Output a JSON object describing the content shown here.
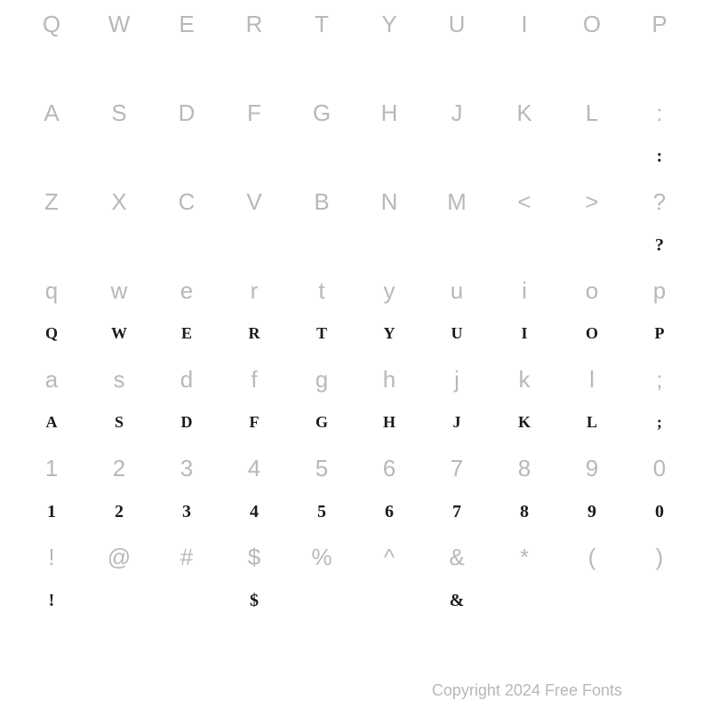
{
  "background_color": "#ffffff",
  "key_label_color": "#b8b8b8",
  "glyph_color": "#1a1a1a",
  "key_label_fontsize": 26,
  "glyph_fontsize": 20,
  "key_label_font": "sans-serif",
  "glyph_font": "serif",
  "copyright": "Copyright 2024 Free Fonts",
  "rows": [
    {
      "keys": [
        "Q",
        "W",
        "E",
        "R",
        "T",
        "Y",
        "U",
        "I",
        "O",
        "P"
      ],
      "glyphs": [
        "",
        "",
        "",
        "",
        "",
        "",
        "",
        "",
        "",
        ""
      ]
    },
    {
      "keys": [
        "A",
        "S",
        "D",
        "F",
        "G",
        "H",
        "J",
        "K",
        "L",
        ":"
      ],
      "glyphs": [
        "",
        "",
        "",
        "",
        "",
        "",
        "",
        "",
        "",
        ":"
      ]
    },
    {
      "keys": [
        "Z",
        "X",
        "C",
        "V",
        "B",
        "N",
        "M",
        "<",
        ">",
        "?"
      ],
      "glyphs": [
        "",
        "",
        "",
        "",
        "",
        "",
        "",
        "",
        "",
        "?"
      ]
    },
    {
      "keys": [
        "q",
        "w",
        "e",
        "r",
        "t",
        "y",
        "u",
        "i",
        "o",
        "p"
      ],
      "glyphs": [
        "Q",
        "W",
        "E",
        "R",
        "T",
        "Y",
        "U",
        "I",
        "O",
        "P"
      ]
    },
    {
      "keys": [
        "a",
        "s",
        "d",
        "f",
        "g",
        "h",
        "j",
        "k",
        "l",
        ";"
      ],
      "glyphs": [
        "A",
        "S",
        "D",
        "F",
        "G",
        "H",
        "J",
        "K",
        "L",
        ";"
      ]
    },
    {
      "keys": [
        "1",
        "2",
        "3",
        "4",
        "5",
        "6",
        "7",
        "8",
        "9",
        "0"
      ],
      "glyphs": [
        "1",
        "2",
        "3",
        "4",
        "5",
        "6",
        "7",
        "8",
        "9",
        "0"
      ]
    },
    {
      "keys": [
        "!",
        "@",
        "#",
        "$",
        "%",
        "^",
        "&",
        "*",
        "(",
        ")"
      ],
      "glyphs": [
        "!",
        "",
        "",
        "$",
        "",
        "",
        "&",
        "",
        "",
        ""
      ]
    }
  ]
}
